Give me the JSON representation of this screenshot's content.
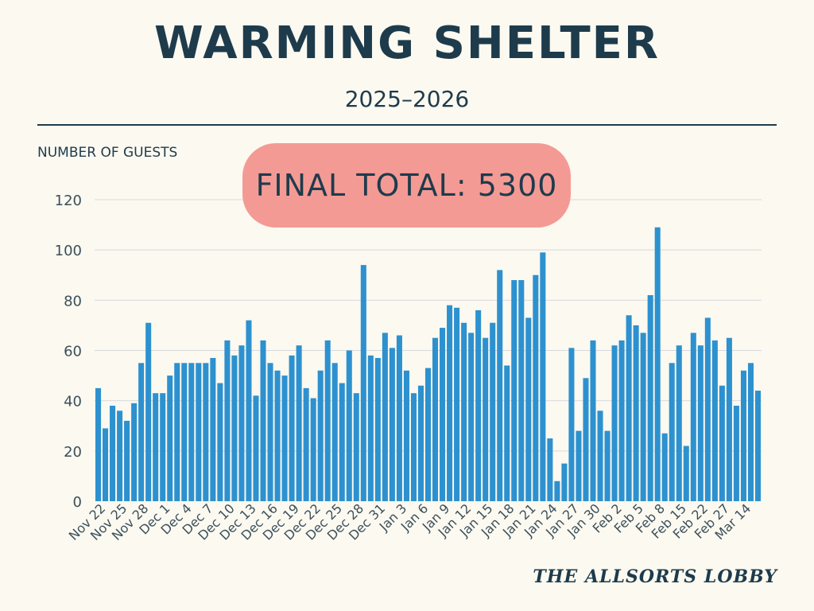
{
  "header": {
    "title": "WARMING SHELTER",
    "subtitle": "2025–2026"
  },
  "annotation": {
    "total": "FINAL TOTAL: 5300"
  },
  "footer": {
    "brand": "THE ALLSORTS LOBBY"
  },
  "colors": {
    "bar": "#2d91cf",
    "text": "#1e3b4c",
    "background": "#fbf9f0",
    "highlight": "#f49a94",
    "grid": "#d7dadb"
  },
  "chart_data": {
    "type": "bar",
    "title": "WARMING SHELTER",
    "subtitle": "2025–2026",
    "xlabel": "",
    "ylabel": "NUMBER OF GUESTS",
    "ylim": [
      0,
      120
    ],
    "yticks": [
      0,
      20,
      40,
      60,
      80,
      100,
      120
    ],
    "grid": true,
    "legend": "none",
    "tick_labels": [
      "Nov 22",
      "Nov 25",
      "Nov 28",
      "Dec 1",
      "Dec 4",
      "Dec 7",
      "Dec 10",
      "Dec 13",
      "Dec 16",
      "Dec 19",
      "Dec 22",
      "Dec 25",
      "Dec 28",
      "Dec 31",
      "Jan 3",
      "Jan 6",
      "Jan 9",
      "Jan 12",
      "Jan 15",
      "Jan 18",
      "Jan 21",
      "Jan 24",
      "Jan 27",
      "Jan 30",
      "Feb 2",
      "Feb 5",
      "Feb 8",
      "Feb 15",
      "Feb 22",
      "Feb 27",
      "Mar 14"
    ],
    "tick_indices": [
      0,
      3,
      6,
      9,
      12,
      15,
      18,
      21,
      24,
      27,
      30,
      33,
      36,
      39,
      42,
      45,
      48,
      51,
      54,
      57,
      60,
      63,
      66,
      69,
      72,
      75,
      78,
      81,
      84,
      87,
      90
    ],
    "values": [
      45,
      29,
      38,
      36,
      32,
      39,
      55,
      71,
      43,
      43,
      50,
      55,
      55,
      55,
      55,
      55,
      57,
      47,
      64,
      58,
      62,
      72,
      42,
      64,
      55,
      52,
      50,
      58,
      62,
      45,
      41,
      52,
      64,
      55,
      47,
      60,
      43,
      94,
      58,
      57,
      67,
      61,
      66,
      52,
      43,
      46,
      53,
      65,
      69,
      78,
      77,
      71,
      67,
      76,
      65,
      71,
      92,
      54,
      88,
      88,
      73,
      90,
      99,
      25,
      8,
      15,
      61,
      28,
      49,
      64,
      36,
      28,
      62,
      64,
      74,
      70,
      67,
      82,
      109,
      27,
      55,
      62,
      22,
      67,
      62,
      73,
      64,
      46,
      65,
      38,
      52,
      55,
      44
    ]
  }
}
